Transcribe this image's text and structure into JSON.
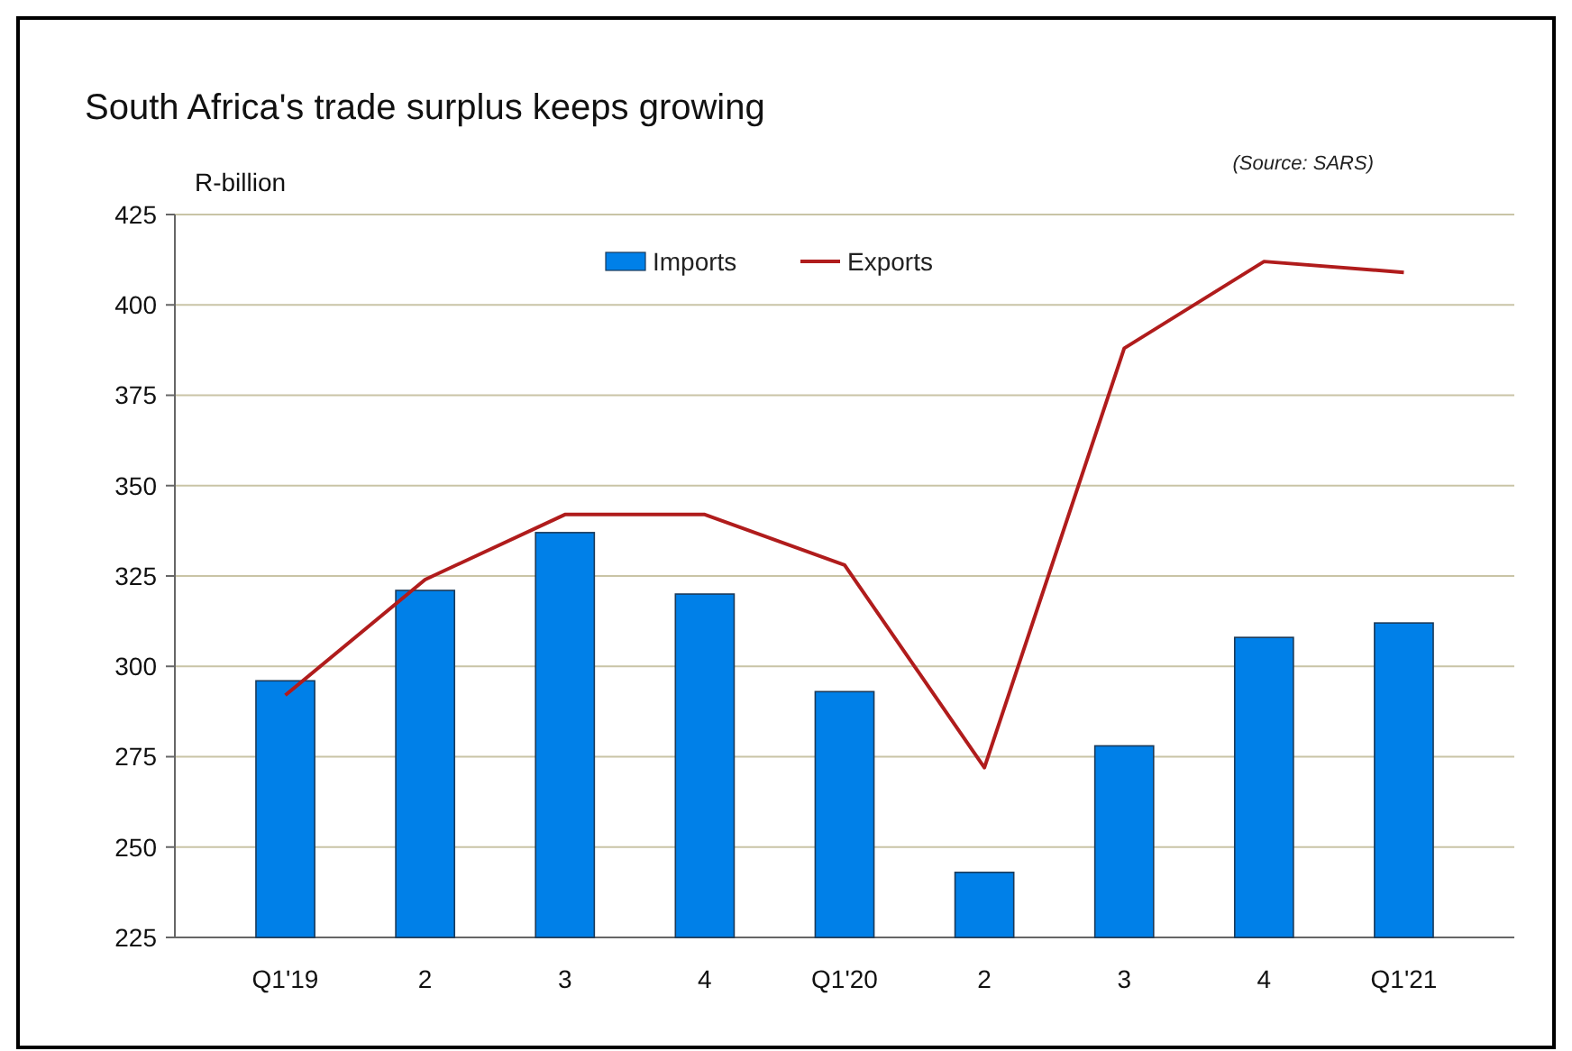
{
  "chart_data": {
    "type": "bar",
    "title": "South Africa's trade surplus keeps growing",
    "ylabel": "R-billion",
    "annotations": [
      "(Source: SARS)"
    ],
    "categories": [
      "Q1'19",
      "2",
      "3",
      "4",
      "Q1'20",
      "2",
      "3",
      "4",
      "Q1'21"
    ],
    "series": [
      {
        "name": "Imports",
        "color": "#0080e8",
        "values": [
          296,
          321,
          337,
          320,
          293,
          243,
          278,
          308,
          312
        ]
      },
      {
        "name": "Exports",
        "type": "line",
        "color": "#b01c1c",
        "values": [
          292,
          324,
          342,
          342,
          328,
          272,
          388,
          412,
          409
        ]
      }
    ],
    "ylim": [
      225,
      425
    ],
    "yticks": [
      225,
      250,
      275,
      300,
      325,
      350,
      375,
      400,
      425
    ],
    "grid": "y",
    "legend": "top",
    "marker": "none",
    "line_style": "solid"
  }
}
